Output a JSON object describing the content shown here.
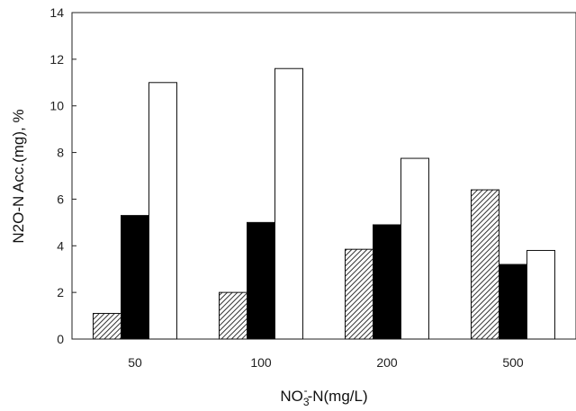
{
  "chart_data": {
    "type": "bar",
    "categories": [
      "50",
      "100",
      "200",
      "500"
    ],
    "series": [
      {
        "values": [
          1.1,
          2.0,
          3.85,
          6.4
        ],
        "pattern": "hatched",
        "color": "#3a3a3a"
      },
      {
        "values": [
          5.3,
          5.0,
          4.9,
          3.2
        ],
        "pattern": "solid",
        "color": "#000000"
      },
      {
        "values": [
          11.0,
          11.6,
          7.75,
          3.8
        ],
        "pattern": "empty",
        "color": "#ffffff"
      }
    ],
    "xlabel": {
      "main": "NO",
      "sub": "3",
      "sup": "-",
      "rest": "-N(mg/L)"
    },
    "ylabel": "N2O-N Acc.(mg), %",
    "ylim": [
      0,
      14
    ],
    "yticks": [
      "0",
      "2",
      "4",
      "6",
      "8",
      "10",
      "12",
      "14"
    ],
    "grid": false,
    "legend": "none"
  }
}
